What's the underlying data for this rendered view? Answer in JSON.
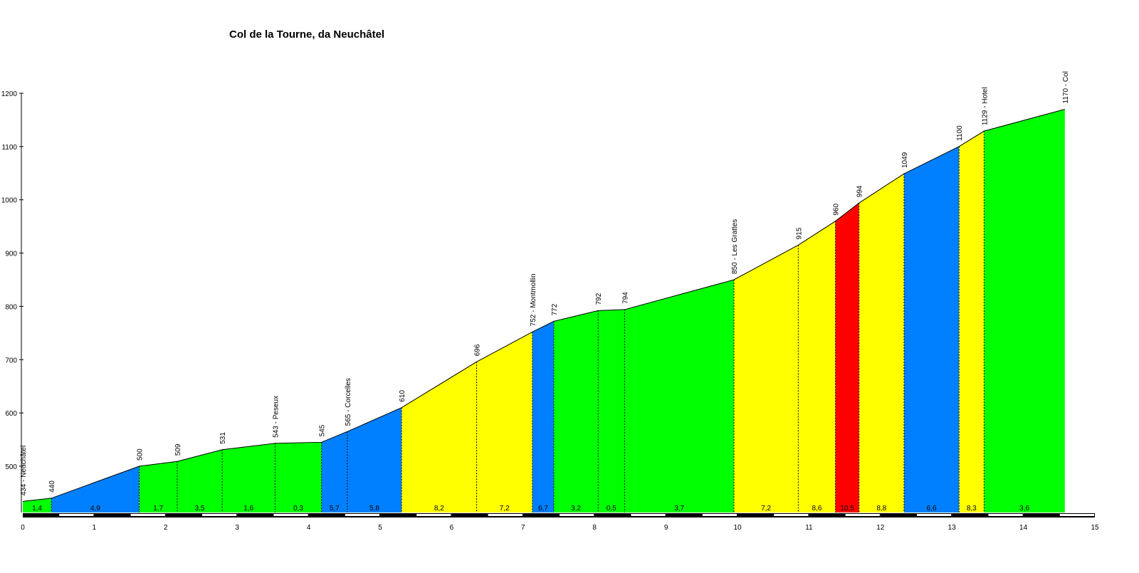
{
  "chart_data": {
    "type": "area",
    "title": "Col de la Tourne, da Neuchâtel",
    "xlabel": "",
    "ylabel": "",
    "xlim": [
      0,
      15
    ],
    "ylim": [
      410,
      1200
    ],
    "x_ticks": [
      "0",
      "1",
      "2",
      "3",
      "4",
      "5",
      "6",
      "7",
      "8",
      "9",
      "10",
      "11",
      "12",
      "13",
      "14",
      "15"
    ],
    "y_ticks": [
      "500",
      "600",
      "700",
      "800",
      "900",
      "1000",
      "1100",
      "1200"
    ],
    "points": [
      {
        "x": 0.0,
        "y": 434,
        "label": "434 - Neuchâtel"
      },
      {
        "x": 0.4,
        "y": 440,
        "label": "440"
      },
      {
        "x": 1.63,
        "y": 500,
        "label": "500"
      },
      {
        "x": 2.16,
        "y": 509,
        "label": "509"
      },
      {
        "x": 2.79,
        "y": 531,
        "label": "531"
      },
      {
        "x": 3.53,
        "y": 543,
        "label": "543 - Peseux"
      },
      {
        "x": 4.18,
        "y": 545,
        "label": "545"
      },
      {
        "x": 4.54,
        "y": 565,
        "label": "565 - Corcelles"
      },
      {
        "x": 5.3,
        "y": 610,
        "label": "610"
      },
      {
        "x": 6.35,
        "y": 696,
        "label": "696"
      },
      {
        "x": 7.13,
        "y": 752,
        "label": "752 - Montmollin"
      },
      {
        "x": 7.43,
        "y": 772,
        "label": "772"
      },
      {
        "x": 8.05,
        "y": 792,
        "label": "792"
      },
      {
        "x": 8.42,
        "y": 794,
        "label": "794"
      },
      {
        "x": 9.95,
        "y": 850,
        "label": "850 - Les Grattes"
      },
      {
        "x": 10.85,
        "y": 915,
        "label": "915"
      },
      {
        "x": 11.37,
        "y": 960,
        "label": "960"
      },
      {
        "x": 11.7,
        "y": 994,
        "label": "994"
      },
      {
        "x": 12.33,
        "y": 1049,
        "label": "1049"
      },
      {
        "x": 13.1,
        "y": 1100,
        "label": "1100"
      },
      {
        "x": 13.45,
        "y": 1129,
        "label": "1129 - Hotel"
      },
      {
        "x": 14.58,
        "y": 1170,
        "label": "1170 - Col"
      }
    ],
    "segments": [
      {
        "grade": "1,4",
        "color": "#00FF00"
      },
      {
        "grade": "4,9",
        "color": "#0080FF"
      },
      {
        "grade": "1,7",
        "color": "#00FF00"
      },
      {
        "grade": "3,5",
        "color": "#00FF00"
      },
      {
        "grade": "1,6",
        "color": "#00FF00"
      },
      {
        "grade": "0,3",
        "color": "#00FF00"
      },
      {
        "grade": "5,7",
        "color": "#0080FF"
      },
      {
        "grade": "5,8",
        "color": "#0080FF"
      },
      {
        "grade": "8,2",
        "color": "#FFFF00"
      },
      {
        "grade": "7,2",
        "color": "#FFFF00"
      },
      {
        "grade": "6,7",
        "color": "#0080FF"
      },
      {
        "grade": "3,2",
        "color": "#00FF00"
      },
      {
        "grade": "0,5",
        "color": "#00FF00"
      },
      {
        "grade": "3,7",
        "color": "#00FF00"
      },
      {
        "grade": "7,2",
        "color": "#FFFF00"
      },
      {
        "grade": "8,6",
        "color": "#FFFF00"
      },
      {
        "grade": "10,5",
        "color": "#FF0000"
      },
      {
        "grade": "8,8",
        "color": "#FFFF00"
      },
      {
        "grade": "6,6",
        "color": "#0080FF"
      },
      {
        "grade": "8,3",
        "color": "#FFFF00"
      },
      {
        "grade": "3,6",
        "color": "#00FF00"
      }
    ],
    "grid": false,
    "legend": "none"
  }
}
